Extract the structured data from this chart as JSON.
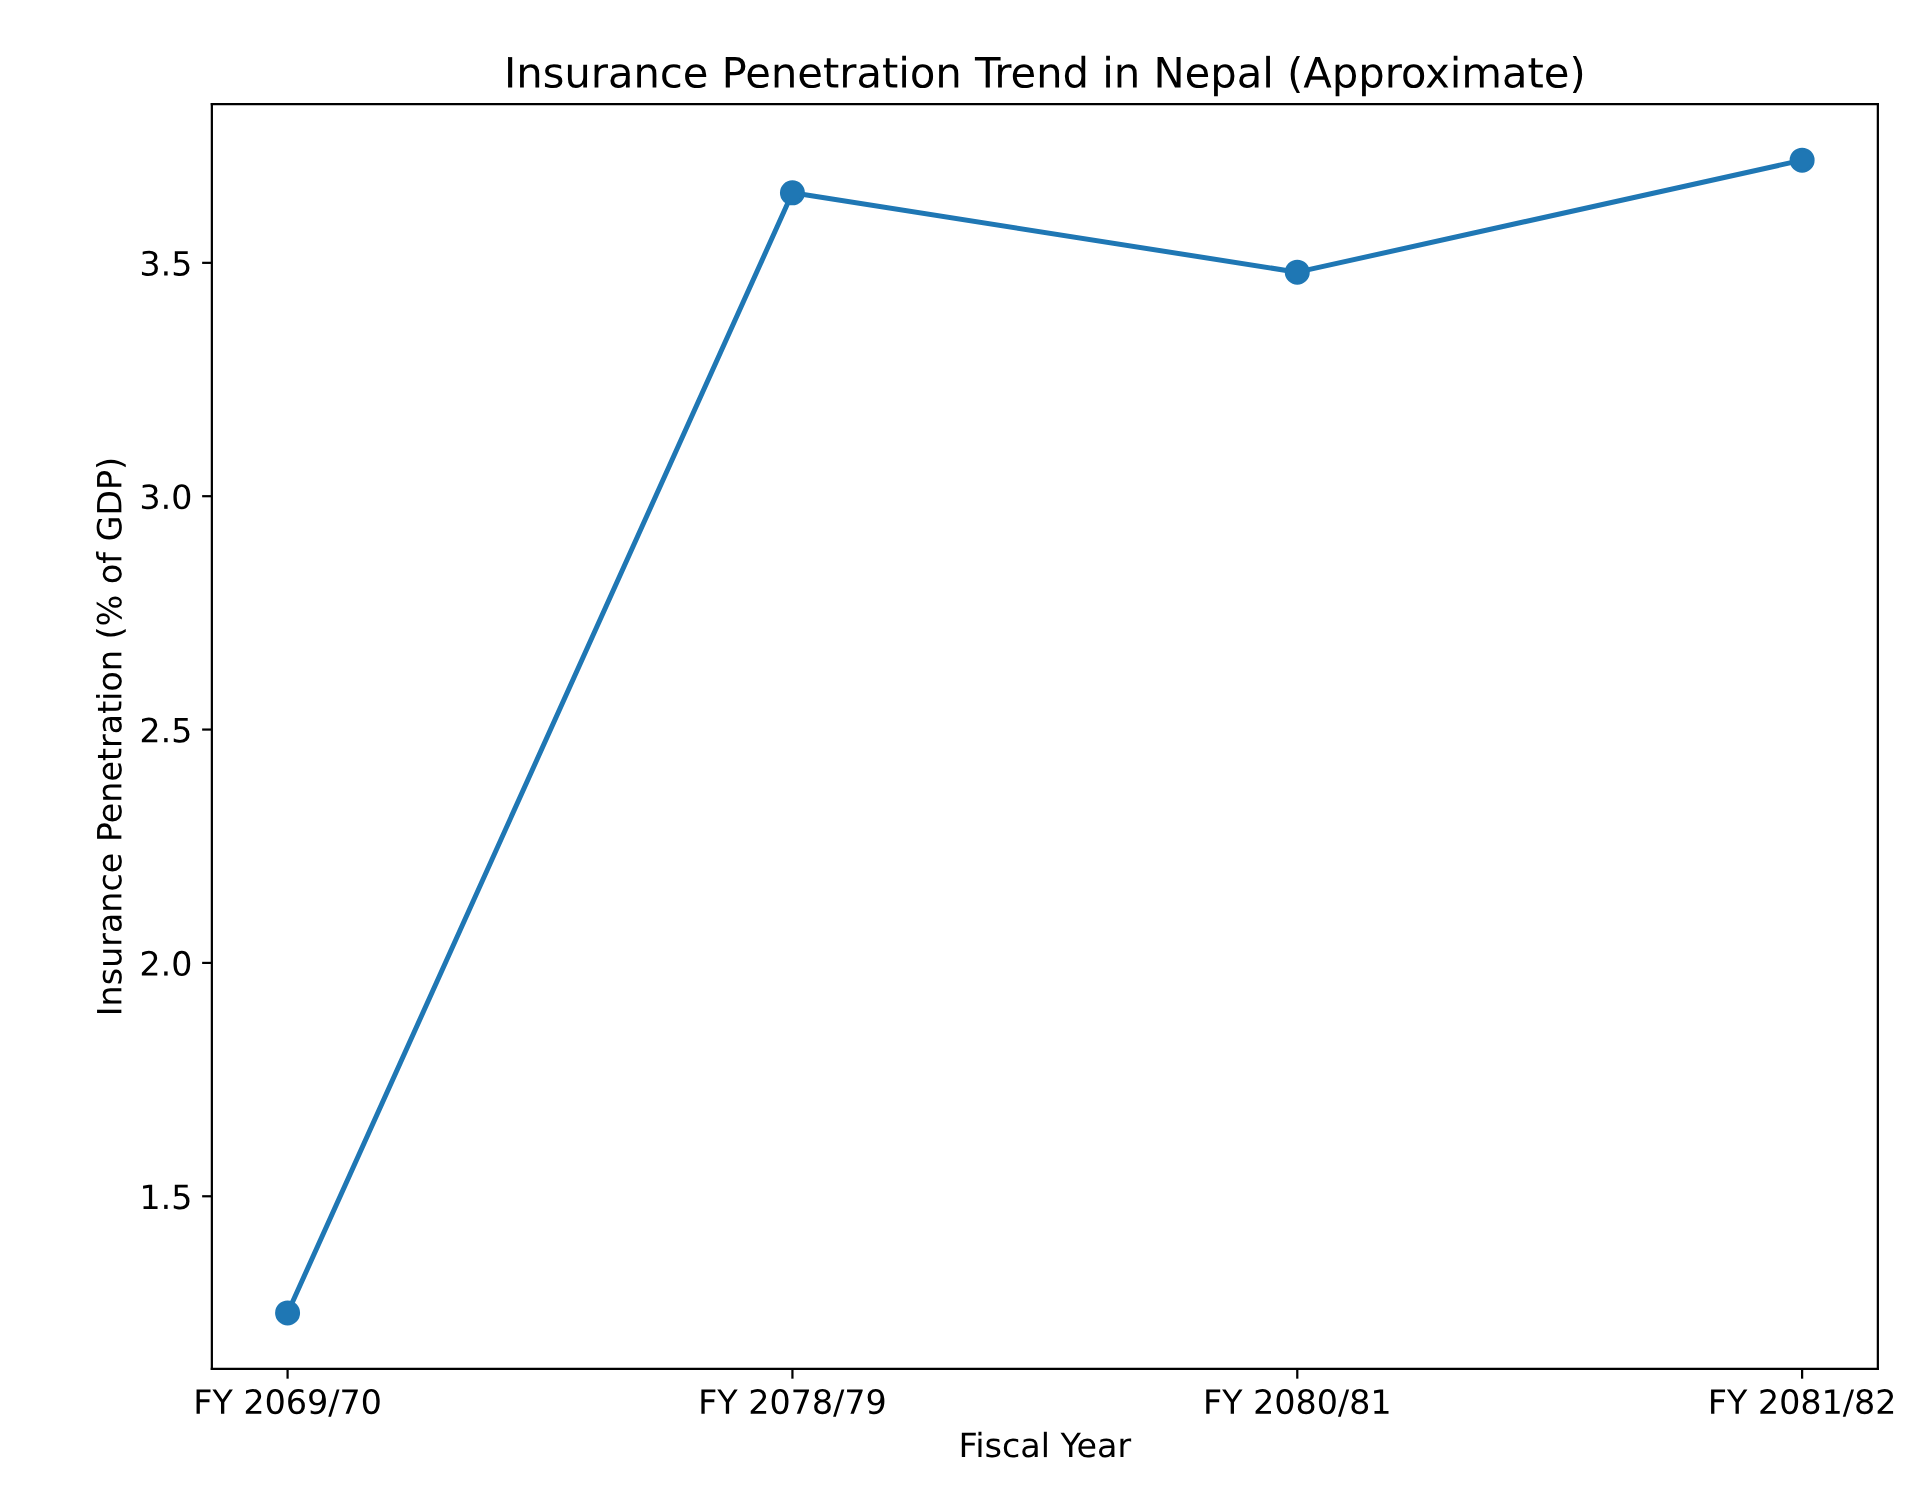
{
  "chart_data": {
    "type": "line",
    "title": "Insurance Penetration Trend in Nepal (Approximate)",
    "xlabel": "Fiscal Year",
    "ylabel": "Insurance Penetration (% of GDP)",
    "categories": [
      "FY 2069/70",
      "FY 2078/79",
      "FY 2080/81",
      "FY 2081/82"
    ],
    "series": [
      {
        "color": "#1f77b4",
        "values": [
          1.25,
          3.65,
          3.48,
          3.72
        ]
      }
    ],
    "ylim": [
      1.13,
      3.84
    ],
    "yticks": [
      1.5,
      {
        "value": 2,
        "label": "2.0"
      },
      2.5,
      {
        "value": 3,
        "label": "3.0"
      },
      3.5
    ],
    "marker": "circle",
    "line_style": "solid",
    "grid": false,
    "legend": false
  }
}
